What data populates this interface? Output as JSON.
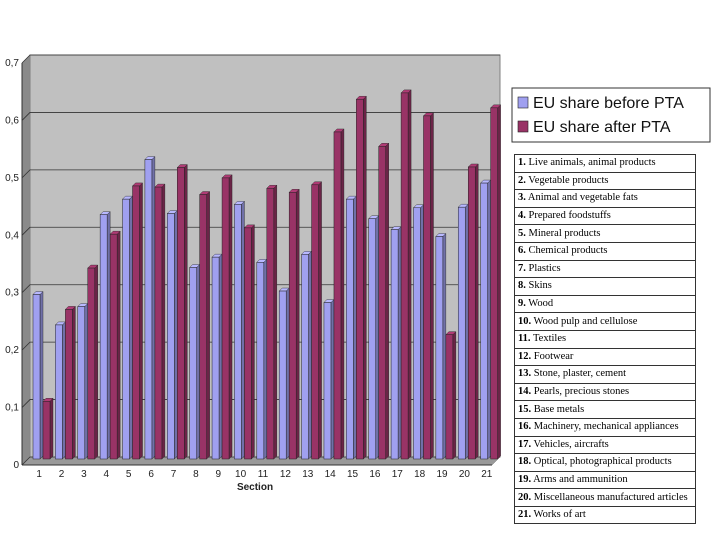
{
  "chart_data": {
    "type": "bar",
    "xlabel": "Section",
    "ylabel": "",
    "title": "",
    "ylim": [
      0,
      0.7
    ],
    "yticks": [
      "0",
      "0,1",
      "0,2",
      "0,3",
      "0,4",
      "0,5",
      "0,6",
      "0,7"
    ],
    "categories": [
      "1",
      "2",
      "3",
      "4",
      "5",
      "6",
      "7",
      "8",
      "9",
      "10",
      "11",
      "12",
      "13",
      "14",
      "15",
      "16",
      "17",
      "18",
      "19",
      "20",
      "21"
    ],
    "series": [
      {
        "name": "EU share before PTA",
        "color": "#a0a0f0",
        "values": [
          0.283,
          0.23,
          0.262,
          0.422,
          0.449,
          0.518,
          0.424,
          0.33,
          0.348,
          0.44,
          0.339,
          0.289,
          0.353,
          0.269,
          0.449,
          0.415,
          0.396,
          0.434,
          0.384,
          0.435,
          0.477
        ]
      },
      {
        "name": "EU share after PTA",
        "color": "#993366",
        "values": [
          0.097,
          0.257,
          0.329,
          0.388,
          0.472,
          0.47,
          0.504,
          0.457,
          0.486,
          0.399,
          0.468,
          0.461,
          0.474,
          0.566,
          0.623,
          0.541,
          0.634,
          0.594,
          0.213,
          0.505,
          0.608
        ]
      }
    ],
    "grid": true,
    "legend_position": "right"
  },
  "section_table": [
    {
      "num": "1.",
      "label": "Live animals, animal products"
    },
    {
      "num": "2.",
      "label": "Vegetable products"
    },
    {
      "num": "3.",
      "label": "Animal and vegetable fats"
    },
    {
      "num": "4.",
      "label": "Prepared foodstuffs"
    },
    {
      "num": "5.",
      "label": "Mineral products"
    },
    {
      "num": "6.",
      "label": "Chemical products"
    },
    {
      "num": "7.",
      "label": "Plastics"
    },
    {
      "num": "8.",
      "label": "Skins"
    },
    {
      "num": "9.",
      "label": "Wood"
    },
    {
      "num": "10.",
      "label": "Wood pulp and cellulose"
    },
    {
      "num": "11.",
      "label": "Textiles"
    },
    {
      "num": "12.",
      "label": "Footwear"
    },
    {
      "num": "13.",
      "label": "Stone, plaster, cement"
    },
    {
      "num": "14.",
      "label": "Pearls, precious stones"
    },
    {
      "num": "15.",
      "label": "Base metals"
    },
    {
      "num": "16.",
      "label": "Machinery, mechanical appliances"
    },
    {
      "num": "17.",
      "label": "Vehicles, aircrafts"
    },
    {
      "num": "18.",
      "label": "Optical, photographical products"
    },
    {
      "num": "19.",
      "label": "Arms and ammunition"
    },
    {
      "num": "20.",
      "label": "Miscellaneous manufactured articles"
    },
    {
      "num": "21.",
      "label": "Works of art"
    }
  ]
}
